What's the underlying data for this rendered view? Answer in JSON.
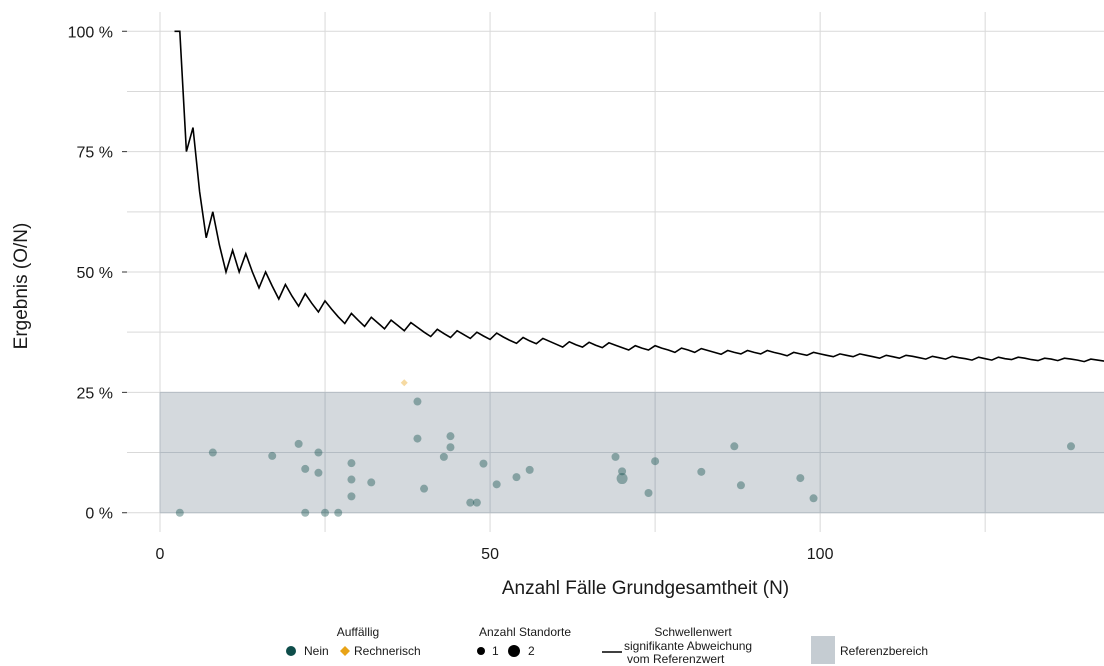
{
  "colors": {
    "nein": "#0e4d4a",
    "rechnerisch": "#e8a317",
    "reference": "#c5ccd2",
    "grid": "#d9d9d9",
    "threshold_line": "#000000"
  },
  "chart_data": {
    "type": "scatter",
    "xlabel": "Anzahl Fälle Grundgesamtheit (N)",
    "ylabel": "Ergebnis (O/N)",
    "xlim": [
      -5,
      143
    ],
    "ylim": [
      -4,
      104
    ],
    "x_ticks": [
      0,
      50,
      100
    ],
    "x_tick_labels": [
      "0",
      "50",
      "100"
    ],
    "y_ticks": [
      0,
      25,
      50,
      75,
      100
    ],
    "y_tick_labels": [
      "0 %",
      "25 %",
      "50 %",
      "75 %",
      "100 %"
    ],
    "reference_range": {
      "x": [
        0,
        143
      ],
      "y": [
        0,
        25
      ]
    },
    "points_nein": [
      {
        "x": 3,
        "y": 0,
        "n": 1
      },
      {
        "x": 8,
        "y": 12.5,
        "n": 1
      },
      {
        "x": 17,
        "y": 11.8,
        "n": 1
      },
      {
        "x": 21,
        "y": 14.3,
        "n": 1
      },
      {
        "x": 22,
        "y": 9.1,
        "n": 1
      },
      {
        "x": 22,
        "y": 0,
        "n": 1
      },
      {
        "x": 24,
        "y": 12.5,
        "n": 1
      },
      {
        "x": 24,
        "y": 8.3,
        "n": 1
      },
      {
        "x": 25,
        "y": 0,
        "n": 1
      },
      {
        "x": 27,
        "y": 0,
        "n": 1
      },
      {
        "x": 29,
        "y": 10.3,
        "n": 1
      },
      {
        "x": 29,
        "y": 6.9,
        "n": 1
      },
      {
        "x": 29,
        "y": 3.4,
        "n": 1
      },
      {
        "x": 32,
        "y": 6.3,
        "n": 1
      },
      {
        "x": 39,
        "y": 23.1,
        "n": 1
      },
      {
        "x": 39,
        "y": 15.4,
        "n": 1
      },
      {
        "x": 40,
        "y": 5,
        "n": 1
      },
      {
        "x": 43,
        "y": 11.6,
        "n": 1
      },
      {
        "x": 44,
        "y": 15.9,
        "n": 1
      },
      {
        "x": 44,
        "y": 13.6,
        "n": 1
      },
      {
        "x": 47,
        "y": 2.1,
        "n": 1
      },
      {
        "x": 48,
        "y": 2.1,
        "n": 1
      },
      {
        "x": 49,
        "y": 10.2,
        "n": 1
      },
      {
        "x": 51,
        "y": 5.9,
        "n": 1
      },
      {
        "x": 54,
        "y": 7.4,
        "n": 1
      },
      {
        "x": 56,
        "y": 8.9,
        "n": 1
      },
      {
        "x": 69,
        "y": 11.6,
        "n": 1
      },
      {
        "x": 70,
        "y": 8.6,
        "n": 1
      },
      {
        "x": 70,
        "y": 7.1,
        "n": 2
      },
      {
        "x": 74,
        "y": 4.1,
        "n": 1
      },
      {
        "x": 75,
        "y": 10.7,
        "n": 1
      },
      {
        "x": 82,
        "y": 8.5,
        "n": 1
      },
      {
        "x": 87,
        "y": 13.8,
        "n": 1
      },
      {
        "x": 88,
        "y": 5.7,
        "n": 1
      },
      {
        "x": 97,
        "y": 7.2,
        "n": 1
      },
      {
        "x": 99,
        "y": 3,
        "n": 1
      },
      {
        "x": 138,
        "y": 13.8,
        "n": 1
      }
    ],
    "points_rechnerisch": [
      {
        "x": 37,
        "y": 27,
        "n": 1
      }
    ],
    "threshold_line": [
      [
        2.2,
        100
      ],
      [
        3,
        100
      ],
      [
        4,
        75
      ],
      [
        5,
        80
      ],
      [
        6,
        66.7
      ],
      [
        7,
        57.1
      ],
      [
        8,
        62.5
      ],
      [
        9,
        55.6
      ],
      [
        10,
        50
      ],
      [
        11,
        54.5
      ],
      [
        12,
        50
      ],
      [
        13,
        53.8
      ],
      [
        14,
        50
      ],
      [
        15,
        46.7
      ],
      [
        16,
        50
      ],
      [
        17,
        47.1
      ],
      [
        18,
        44.4
      ],
      [
        19,
        47.4
      ],
      [
        20,
        45
      ],
      [
        21,
        42.9
      ],
      [
        22,
        45.5
      ],
      [
        23,
        43.5
      ],
      [
        24,
        41.7
      ],
      [
        25,
        44
      ],
      [
        26,
        42.3
      ],
      [
        27,
        40.7
      ],
      [
        28,
        39.3
      ],
      [
        29,
        41.4
      ],
      [
        30,
        40
      ],
      [
        31,
        38.7
      ],
      [
        32,
        40.6
      ],
      [
        33,
        39.4
      ],
      [
        34,
        38.2
      ],
      [
        35,
        40
      ],
      [
        36,
        38.9
      ],
      [
        37,
        37.8
      ],
      [
        38,
        39.5
      ],
      [
        39,
        38.5
      ],
      [
        40,
        37.5
      ],
      [
        41,
        36.6
      ],
      [
        42,
        38.1
      ],
      [
        43,
        37.2
      ],
      [
        44,
        36.4
      ],
      [
        45,
        37.8
      ],
      [
        46,
        37
      ],
      [
        47,
        36.2
      ],
      [
        48,
        37.5
      ],
      [
        49,
        36.7
      ],
      [
        50,
        36
      ],
      [
        51,
        37.3
      ],
      [
        52,
        36.5
      ],
      [
        53,
        35.8
      ],
      [
        54,
        35.2
      ],
      [
        55,
        36.4
      ],
      [
        56,
        35.7
      ],
      [
        57,
        35.1
      ],
      [
        58,
        36.2
      ],
      [
        59,
        35.6
      ],
      [
        60,
        35
      ],
      [
        61,
        34.4
      ],
      [
        62,
        35.5
      ],
      [
        63,
        34.9
      ],
      [
        64,
        34.4
      ],
      [
        65,
        35.4
      ],
      [
        66,
        34.8
      ],
      [
        67,
        34.3
      ],
      [
        68,
        35.3
      ],
      [
        69,
        34.8
      ],
      [
        70,
        34.3
      ],
      [
        71,
        33.8
      ],
      [
        72,
        34.7
      ],
      [
        73,
        34.2
      ],
      [
        74,
        33.8
      ],
      [
        75,
        34.7
      ],
      [
        76,
        34.2
      ],
      [
        77,
        33.8
      ],
      [
        78,
        33.3
      ],
      [
        79,
        34.2
      ],
      [
        80,
        33.8
      ],
      [
        81,
        33.3
      ],
      [
        82,
        34.1
      ],
      [
        83,
        33.7
      ],
      [
        84,
        33.3
      ],
      [
        85,
        32.9
      ],
      [
        86,
        33.7
      ],
      [
        87,
        33.3
      ],
      [
        88,
        33
      ],
      [
        89,
        33.7
      ],
      [
        90,
        33.3
      ],
      [
        91,
        33
      ],
      [
        92,
        33.7
      ],
      [
        93,
        33.3
      ],
      [
        94,
        33
      ],
      [
        95,
        32.6
      ],
      [
        96,
        33.3
      ],
      [
        97,
        33
      ],
      [
        98,
        32.7
      ],
      [
        99,
        33.3
      ],
      [
        100,
        33
      ],
      [
        101,
        32.7
      ],
      [
        102,
        32.4
      ],
      [
        103,
        33
      ],
      [
        104,
        32.7
      ],
      [
        105,
        32.4
      ],
      [
        106,
        33
      ],
      [
        107,
        32.7
      ],
      [
        108,
        32.4
      ],
      [
        109,
        32.1
      ],
      [
        110,
        32.7
      ],
      [
        111,
        32.4
      ],
      [
        112,
        32.1
      ],
      [
        113,
        32.7
      ],
      [
        114,
        32.5
      ],
      [
        115,
        32.2
      ],
      [
        116,
        31.9
      ],
      [
        117,
        32.5
      ],
      [
        118,
        32.2
      ],
      [
        119,
        31.9
      ],
      [
        120,
        32.5
      ],
      [
        121,
        32.2
      ],
      [
        122,
        32
      ],
      [
        123,
        31.7
      ],
      [
        124,
        32.3
      ],
      [
        125,
        32
      ],
      [
        126,
        31.7
      ],
      [
        127,
        32.3
      ],
      [
        128,
        32
      ],
      [
        129,
        31.8
      ],
      [
        130,
        32.3
      ],
      [
        131,
        32.1
      ],
      [
        132,
        31.8
      ],
      [
        133,
        31.6
      ],
      [
        134,
        32.1
      ],
      [
        135,
        31.9
      ],
      [
        136,
        31.6
      ],
      [
        137,
        32.1
      ],
      [
        138,
        31.9
      ],
      [
        139,
        31.7
      ],
      [
        140,
        31.4
      ],
      [
        141,
        31.9
      ],
      [
        142,
        31.7
      ],
      [
        143,
        31.5
      ],
      [
        144,
        31.9
      ],
      [
        145,
        31.6
      ],
      [
        146,
        31.4
      ],
      [
        147,
        31.3
      ],
      [
        148,
        31.8
      ]
    ],
    "legend": {
      "placement": "bottom",
      "groups": [
        {
          "title": "Auffällig",
          "items": [
            "Nein",
            "Rechnerisch"
          ]
        },
        {
          "title": "Anzahl Standorte",
          "items": [
            "1",
            "2"
          ]
        },
        {
          "title": "Schwellenwert",
          "items": [
            "signifikante Abweichung",
            "vom Referenzwert"
          ]
        },
        {
          "title": "",
          "items": [
            "Referenzbereich"
          ]
        }
      ]
    }
  }
}
